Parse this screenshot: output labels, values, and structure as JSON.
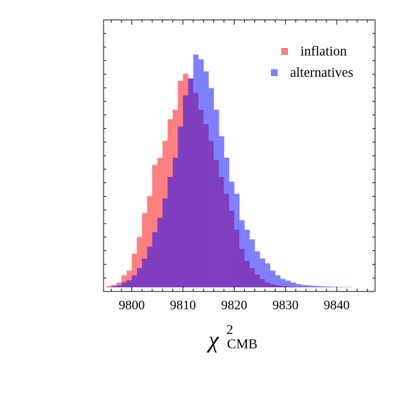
{
  "chart_data": {
    "type": "histogram",
    "xlabel": {
      "symbol": "χ",
      "superscript": "2",
      "subscript": "CMB"
    },
    "xlim": [
      9794.5,
      9847.5
    ],
    "ylim": [
      0,
      1.0
    ],
    "x_ticks": [
      9800,
      9810,
      9820,
      9830,
      9840
    ],
    "x_tick_labels": [
      "9800",
      "9810",
      "9820",
      "9830",
      "9840"
    ],
    "y_tick_labels": [],
    "bin_width": 1,
    "bin_start": 9795,
    "series": [
      {
        "name": "inflation",
        "color": "#ff8080",
        "values": [
          0.005,
          0.01,
          0.02,
          0.05,
          0.07,
          0.14,
          0.21,
          0.31,
          0.38,
          0.51,
          0.54,
          0.61,
          0.7,
          0.74,
          0.86,
          0.89,
          0.87,
          0.81,
          0.74,
          0.68,
          0.61,
          0.53,
          0.46,
          0.39,
          0.32,
          0.24,
          0.16,
          0.11,
          0.08,
          0.055,
          0.035,
          0.02,
          0.013,
          0.009,
          0.006,
          0.004,
          0.003,
          0.002,
          0.001,
          0.001,
          0.001,
          0.001,
          0.001,
          0.001,
          0.001,
          0.001,
          0.001,
          0.001
        ]
      },
      {
        "name": "alternatives",
        "color": "#8080ff",
        "values": [
          0.0,
          0.005,
          0.008,
          0.02,
          0.03,
          0.05,
          0.08,
          0.12,
          0.17,
          0.23,
          0.29,
          0.37,
          0.46,
          0.54,
          0.67,
          0.8,
          0.87,
          0.97,
          0.95,
          0.9,
          0.83,
          0.74,
          0.63,
          0.54,
          0.44,
          0.39,
          0.28,
          0.24,
          0.2,
          0.15,
          0.12,
          0.1,
          0.07,
          0.05,
          0.035,
          0.028,
          0.02,
          0.014,
          0.01,
          0.008,
          0.006,
          0.005,
          0.004,
          0.003,
          0.002,
          0.002,
          0.001,
          0.001
        ]
      }
    ],
    "overlap_color": "#7f3fbf",
    "legend": {
      "position": "top-right",
      "entries": [
        "inflation",
        "alternatives"
      ]
    },
    "grid": false
  }
}
